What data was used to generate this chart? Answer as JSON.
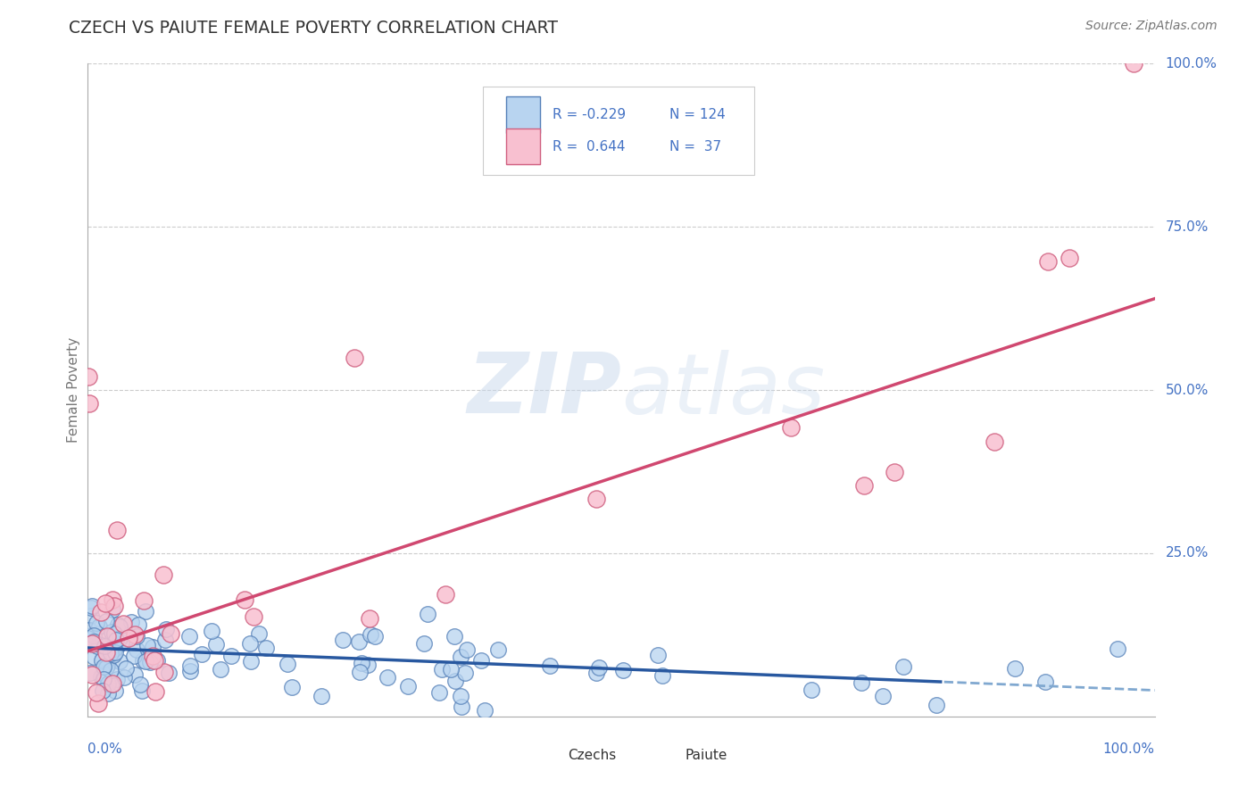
{
  "title": "CZECH VS PAIUTE FEMALE POVERTY CORRELATION CHART",
  "source": "Source: ZipAtlas.com",
  "ylabel": "Female Poverty",
  "czech_color_face": "#b8d4f0",
  "czech_color_edge": "#5580b8",
  "paiute_color_face": "#f8c0d0",
  "paiute_color_edge": "#d06080",
  "czech_line_color": "#2858a0",
  "czech_line_color_dash": "#80a8d0",
  "paiute_line_color": "#d04870",
  "legend_text_color": "#4472c4",
  "legend_r_color": "#c03060",
  "axis_tick_color": "#4472c4",
  "ylabel_color": "#777777",
  "title_color": "#333333",
  "source_color": "#777777",
  "grid_color": "#cccccc",
  "background": "#ffffff",
  "watermark_color": "#c8d8ec",
  "ytick_vals": [
    0,
    25,
    50,
    75,
    100
  ],
  "ytick_labels": [
    "",
    "25.0%",
    "50.0%",
    "75.0%",
    "100.0%"
  ],
  "xlim": [
    0,
    100
  ],
  "ylim": [
    0,
    100
  ],
  "czech_line_x0": 0,
  "czech_line_y0": 10.5,
  "czech_line_x1": 100,
  "czech_line_y1": 4.0,
  "czech_line_solid_end": 80,
  "paiute_line_x0": 0,
  "paiute_line_y0": 10.0,
  "paiute_line_x1": 100,
  "paiute_line_y1": 64.0,
  "legend_r1": "R = -0.229",
  "legend_n1": "N = 124",
  "legend_r2": "R =  0.644",
  "legend_n2": "N =  37",
  "bottom_legend_labels": [
    "Czechs",
    "Paiute"
  ]
}
